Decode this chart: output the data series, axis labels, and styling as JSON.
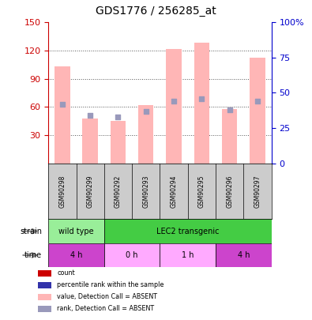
{
  "title": "GDS1776 / 256285_at",
  "samples": [
    "GSM90298",
    "GSM90299",
    "GSM90292",
    "GSM90293",
    "GSM90294",
    "GSM90295",
    "GSM90296",
    "GSM90297"
  ],
  "bar_values": [
    103,
    48,
    45,
    62,
    122,
    128,
    58,
    112
  ],
  "rank_values": [
    42,
    34,
    33,
    37,
    44,
    46,
    38,
    44
  ],
  "left_ylim": [
    0,
    150
  ],
  "left_yticks": [
    30,
    60,
    90,
    120,
    150
  ],
  "right_ylim": [
    0,
    100
  ],
  "right_yticks": [
    0,
    25,
    50,
    75,
    100
  ],
  "bar_color": "#ffb6b6",
  "rank_color": "#9999bb",
  "xlabel_gray": "#cccccc",
  "strain_segments": [
    {
      "label": "wild type",
      "start": 0,
      "end": 2,
      "color": "#99ee99"
    },
    {
      "label": "LEC2 transgenic",
      "start": 2,
      "end": 8,
      "color": "#44cc44"
    }
  ],
  "time_segments": [
    {
      "label": "4 h",
      "start": 0,
      "end": 2,
      "color": "#cc44cc"
    },
    {
      "label": "0 h",
      "start": 2,
      "end": 4,
      "color": "#ffaaff"
    },
    {
      "label": "1 h",
      "start": 4,
      "end": 6,
      "color": "#ffaaff"
    },
    {
      "label": "4 h",
      "start": 6,
      "end": 8,
      "color": "#cc44cc"
    }
  ],
  "legend": [
    {
      "color": "#cc0000",
      "label": "count"
    },
    {
      "color": "#3333aa",
      "label": "percentile rank within the sample"
    },
    {
      "color": "#ffb6b6",
      "label": "value, Detection Call = ABSENT"
    },
    {
      "color": "#9999bb",
      "label": "rank, Detection Call = ABSENT"
    }
  ],
  "left_tick_color": "#cc0000",
  "right_tick_color": "#0000cc",
  "grid_color": "#555555",
  "title_fontsize": 10
}
